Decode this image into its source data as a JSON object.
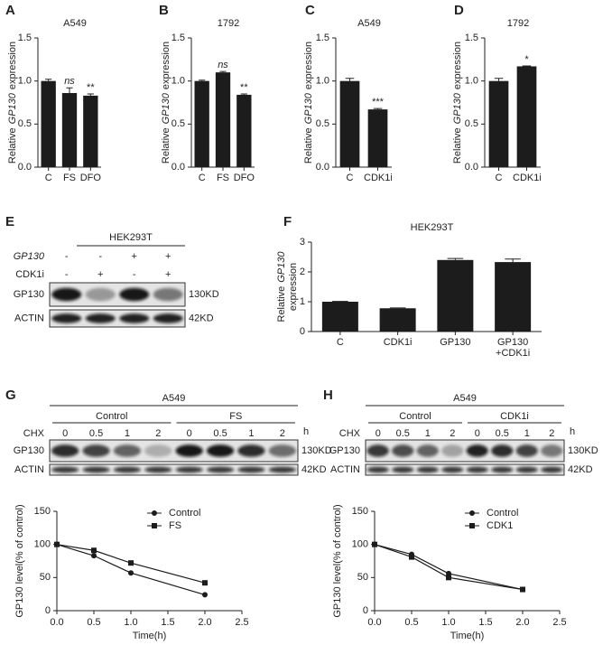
{
  "panel_labels": [
    "A",
    "B",
    "C",
    "D",
    "E",
    "F",
    "G",
    "H"
  ],
  "chart_data": [
    {
      "type": "bar",
      "title": "A549",
      "ylabel": [
        "Relative",
        "GP130",
        "expression"
      ],
      "categories": [
        "C",
        "FS",
        "DFO"
      ],
      "values": [
        1.0,
        0.86,
        0.83
      ],
      "errors": [
        0.02,
        0.06,
        0.02
      ],
      "annotations": [
        null,
        "ns",
        "**"
      ],
      "ylim": [
        0,
        1.5
      ],
      "yticks": [
        {
          "value": 0,
          "label": "0.0"
        },
        {
          "value": 0.5,
          "label": "0.5"
        },
        {
          "value": 1,
          "label": "1.0"
        },
        {
          "value": 1.5,
          "label": "1.5"
        }
      ],
      "color": "#1c1c1c"
    },
    {
      "type": "bar",
      "title": "1792",
      "ylabel": [
        "Relative",
        "GP130",
        "expression"
      ],
      "categories": [
        "C",
        "FS",
        "DFO"
      ],
      "values": [
        1.0,
        1.1,
        0.84
      ],
      "errors": [
        0.01,
        0.01,
        0.01
      ],
      "annotations": [
        null,
        "ns",
        "**"
      ],
      "ylim": [
        0,
        1.5
      ],
      "yticks": [
        {
          "value": 0,
          "label": "0.0"
        },
        {
          "value": 0.5,
          "label": "0.5"
        },
        {
          "value": 1,
          "label": "1.0"
        },
        {
          "value": 1.5,
          "label": "1.5"
        }
      ],
      "color": "#1c1c1c"
    },
    {
      "type": "bar",
      "title": "A549",
      "ylabel": [
        "Relative",
        "GP130",
        "expression"
      ],
      "categories": [
        "C",
        "CDK1i"
      ],
      "values": [
        1.0,
        0.67
      ],
      "errors": [
        0.03,
        0.01
      ],
      "annotations": [
        null,
        "***"
      ],
      "ylim": [
        0,
        1.5
      ],
      "yticks": [
        {
          "value": 0,
          "label": "0.0"
        },
        {
          "value": 0.5,
          "label": "0.5"
        },
        {
          "value": 1,
          "label": "1.0"
        },
        {
          "value": 1.5,
          "label": "1.5"
        }
      ],
      "color": "#1c1c1c"
    },
    {
      "type": "bar",
      "title": "1792",
      "ylabel": [
        "Relative",
        "GP130",
        "expression"
      ],
      "categories": [
        "C",
        "CDK1i"
      ],
      "values": [
        1.0,
        1.17
      ],
      "errors": [
        0.03,
        0.005
      ],
      "annotations": [
        null,
        "*"
      ],
      "ylim": [
        0,
        1.5
      ],
      "yticks": [
        {
          "value": 0,
          "label": "0.0"
        },
        {
          "value": 0.5,
          "label": "0.5"
        },
        {
          "value": 1,
          "label": "1.0"
        },
        {
          "value": 1.5,
          "label": "1.5"
        }
      ],
      "color": "#1c1c1c"
    },
    {
      "type": "bar",
      "title": "HEK293T",
      "ylabel": [
        "Relative",
        "GP130",
        "expression"
      ],
      "categories": [
        "C",
        "CDK1i",
        "GP130",
        "GP130 +CDK1i"
      ],
      "values": [
        1.0,
        0.78,
        2.4,
        2.33
      ],
      "errors": [
        0.01,
        0.01,
        0.05,
        0.1
      ],
      "ylim": [
        0,
        3
      ],
      "yticks": [
        0,
        1,
        2,
        3
      ],
      "color": "#1c1c1c"
    },
    {
      "type": "line",
      "x": [
        0,
        0.5,
        1,
        2
      ],
      "series": [
        {
          "name": "Control",
          "color": "#1c1c1c",
          "marker": "circle",
          "values": [
            100,
            83,
            57,
            24
          ]
        },
        {
          "name": "FS",
          "color": "#1c1c1c",
          "marker": "square",
          "values": [
            100,
            91,
            72,
            42
          ]
        }
      ],
      "xlim": [
        0,
        2.5
      ],
      "xticks": [
        {
          "value": 0,
          "label": "0.0"
        },
        {
          "value": 0.5,
          "label": "0.5"
        },
        {
          "value": 1,
          "label": "1.0"
        },
        {
          "value": 1.5,
          "label": "1.5"
        },
        {
          "value": 2,
          "label": "2.0"
        },
        {
          "value": 2.5,
          "label": "2.5"
        }
      ],
      "ylim": [
        0,
        150
      ],
      "yticks": [
        0,
        50,
        100,
        150
      ],
      "xlabel": "Time(h)",
      "ylabel": "GP130 level(% of control)",
      "legend": "upper right"
    },
    {
      "type": "line",
      "x": [
        0,
        0.5,
        1,
        2
      ],
      "series": [
        {
          "name": "Control",
          "color": "#1c1c1c",
          "marker": "circle",
          "values": [
            100,
            85,
            56,
            32
          ]
        },
        {
          "name": "CDK1",
          "color": "#1c1c1c",
          "marker": "square",
          "values": [
            100,
            81,
            50,
            32
          ]
        }
      ],
      "xlim": [
        0,
        2.5
      ],
      "xticks": [
        {
          "value": 0,
          "label": "0.0"
        },
        {
          "value": 0.5,
          "label": "0.5"
        },
        {
          "value": 1,
          "label": "1.0"
        },
        {
          "value": 1.5,
          "label": "1.5"
        },
        {
          "value": 2,
          "label": "2.0"
        },
        {
          "value": 2.5,
          "label": "2.5"
        }
      ],
      "ylim": [
        0,
        150
      ],
      "yticks": [
        0,
        50,
        100,
        150
      ],
      "xlabel": "Time(h)",
      "ylabel": "GP130 level(% of control)",
      "legend": "upper right"
    }
  ],
  "blots": [
    {
      "title": "HEK293T",
      "rows": [
        {
          "label": "GP130",
          "signs": [
            "-",
            "-",
            "+",
            "+"
          ]
        },
        {
          "label": "CDK1i",
          "signs": [
            "-",
            "+",
            "-",
            "+"
          ]
        }
      ],
      "bands": [
        {
          "label": "GP130",
          "size": "130KD"
        },
        {
          "label": "ACTIN",
          "size": "42KD"
        }
      ]
    },
    {
      "title": "A549",
      "row_label": "CHX",
      "unit": "h",
      "groups": [
        {
          "name": "Control",
          "times": [
            "0",
            "0.5",
            "1",
            "2"
          ]
        },
        {
          "name": "FS",
          "times": [
            "0",
            "0.5",
            "1",
            "2"
          ]
        }
      ],
      "bands": [
        {
          "label": "GP130",
          "size": "130KD"
        },
        {
          "label": "ACTIN",
          "size": "42KD"
        }
      ]
    },
    {
      "title": "A549",
      "row_label": "CHX",
      "unit": "h",
      "groups": [
        {
          "name": "Control",
          "times": [
            "0",
            "0.5",
            "1",
            "2"
          ]
        },
        {
          "name": "CDK1i",
          "times": [
            "0",
            "0.5",
            "1",
            "2"
          ]
        }
      ],
      "bands": [
        {
          "label": "GP130",
          "size": "130KD"
        },
        {
          "label": "ACTIN",
          "size": "42KD"
        }
      ]
    }
  ]
}
